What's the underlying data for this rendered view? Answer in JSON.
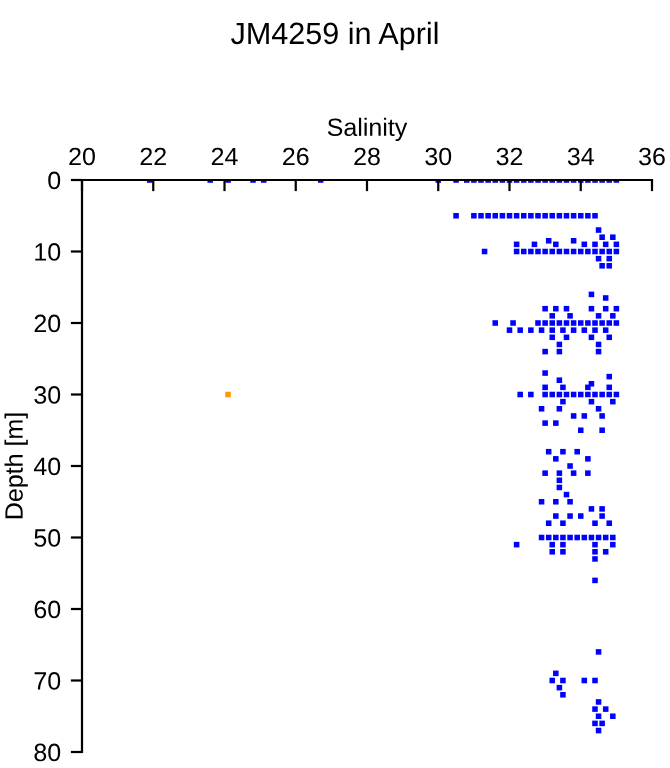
{
  "chart_data": {
    "type": "scatter",
    "title": "JM4259 in April",
    "xlabel": "Salinity",
    "ylabel": "Depth [m]",
    "xlim": [
      20,
      36
    ],
    "xticks": [
      20,
      22,
      24,
      26,
      28,
      30,
      32,
      34,
      36
    ],
    "ylim": [
      80,
      0
    ],
    "yticks": [
      0,
      10,
      20,
      30,
      40,
      50,
      60,
      70,
      80
    ],
    "grid": false,
    "legend": false,
    "marker": "square",
    "series": [
      {
        "color": "#0000ff",
        "x": [
          21.9,
          23.6,
          24.1,
          24.8,
          25.1,
          26.7,
          30.0,
          30.5,
          30.8,
          31.0,
          31.2,
          31.4,
          31.6,
          31.8,
          32.0,
          32.2,
          32.4,
          32.6,
          32.8,
          33.0,
          33.2,
          33.4,
          33.6,
          33.8,
          34.0,
          34.2,
          34.4,
          34.6,
          34.8,
          35.0,
          30.5,
          31.0,
          31.2,
          31.4,
          31.6,
          31.8,
          32.0,
          32.2,
          32.4,
          32.6,
          32.8,
          33.0,
          33.2,
          33.4,
          33.6,
          33.8,
          34.0,
          34.2,
          34.4,
          31.3,
          32.2,
          32.4,
          32.6,
          32.8,
          33.0,
          33.2,
          33.4,
          33.6,
          33.8,
          34.0,
          34.2,
          34.4,
          34.6,
          34.8,
          35.0,
          34.5,
          34.6,
          34.9,
          34.4,
          34.7,
          35.0,
          32.2,
          32.7,
          33.1,
          33.3,
          33.8,
          34.1,
          34.5,
          34.8,
          34.6,
          34.8,
          34.3,
          34.7,
          33.0,
          33.3,
          33.6,
          34.3,
          34.7,
          35.0,
          33.2,
          33.7,
          34.5,
          34.9,
          31.6,
          32.1,
          32.8,
          33.0,
          33.2,
          33.4,
          33.6,
          33.8,
          34.0,
          34.2,
          34.4,
          34.6,
          34.8,
          35.0,
          32.0,
          32.3,
          32.6,
          32.9,
          33.2,
          33.5,
          33.8,
          34.1,
          34.4,
          34.7,
          33.2,
          33.6,
          34.3,
          34.8,
          33.4,
          34.5,
          33.0,
          34.5,
          33.4,
          33.0,
          33.4,
          34.3,
          34.8,
          32.3,
          32.6,
          33.0,
          33.2,
          33.4,
          33.6,
          33.8,
          34.0,
          34.2,
          34.4,
          34.6,
          34.8,
          35.0,
          33.0,
          33.5,
          34.2,
          34.8,
          33.5,
          34.3,
          34.9,
          32.9,
          33.4,
          34.5,
          33.8,
          34.1,
          34.6,
          33.0,
          33.3,
          34.0,
          34.6,
          33.1,
          33.5,
          33.9,
          33.3,
          33.7,
          34.2,
          33.0,
          33.4,
          33.8,
          34.2,
          33.4,
          33.4,
          33.6,
          32.9,
          33.3,
          33.7,
          34.3,
          34.6,
          33.3,
          33.7,
          34.0,
          34.6,
          33.1,
          33.5,
          34.4,
          34.8,
          32.9,
          33.1,
          33.3,
          33.5,
          33.7,
          33.9,
          34.1,
          34.3,
          34.5,
          34.7,
          34.9,
          32.2,
          33.2,
          33.5,
          34.4,
          34.9,
          33.2,
          33.5,
          34.4,
          34.7,
          34.4,
          34.4,
          34.5,
          33.3,
          33.2,
          33.5,
          34.1,
          34.4,
          33.4,
          33.5,
          34.5,
          34.4,
          34.7,
          34.5,
          34.9,
          34.4,
          34.6,
          34.5
        ],
        "values": [
          0,
          0,
          0,
          0,
          0,
          0,
          0,
          0,
          0,
          0,
          0,
          0,
          0,
          0,
          0,
          0,
          0,
          0,
          0,
          0,
          0,
          0,
          0,
          0,
          0,
          0,
          0,
          0,
          0,
          0,
          5,
          5,
          5,
          5,
          5,
          5,
          5,
          5,
          5,
          5,
          5,
          5,
          5,
          5,
          5,
          5,
          5,
          5,
          5,
          10,
          10,
          10,
          10,
          10,
          10,
          10,
          10,
          10,
          10,
          10,
          10,
          10,
          10,
          10,
          10,
          7,
          8,
          8,
          9,
          9,
          9,
          9,
          9,
          8.5,
          9,
          8.5,
          9,
          11,
          11,
          12,
          12,
          16,
          16.5,
          18,
          18,
          18,
          18,
          18,
          18,
          19,
          19,
          19,
          19,
          20,
          20,
          20,
          20,
          20,
          20,
          20,
          20,
          20,
          20,
          20,
          20,
          20,
          20,
          21,
          21,
          21,
          21,
          21,
          21,
          21,
          21,
          21,
          21,
          22,
          22,
          22,
          22,
          23,
          23,
          24,
          24,
          24,
          27,
          28,
          28.5,
          27.5,
          30,
          30,
          30,
          30,
          30,
          30,
          30,
          30,
          30,
          30,
          30,
          30,
          30,
          29,
          29,
          29,
          29,
          31,
          31,
          31,
          32,
          32,
          32,
          33,
          33,
          33,
          34,
          34,
          35,
          35,
          38,
          38,
          38,
          39,
          40,
          39,
          41,
          41,
          41,
          41,
          42,
          43,
          44,
          45,
          45,
          45,
          46,
          46,
          47,
          47,
          47,
          47,
          48,
          48,
          48,
          48,
          50,
          50,
          50,
          50,
          50,
          50,
          50,
          50,
          50,
          50,
          50,
          51,
          51,
          51,
          51,
          51,
          52,
          52,
          52,
          52,
          53,
          56,
          66,
          69,
          70,
          70,
          70,
          70,
          71,
          72,
          73,
          74,
          74,
          75,
          75,
          76,
          76,
          77
        ]
      },
      {
        "color": "#ff9900",
        "x": [
          24.1
        ],
        "values": [
          30
        ]
      }
    ]
  }
}
